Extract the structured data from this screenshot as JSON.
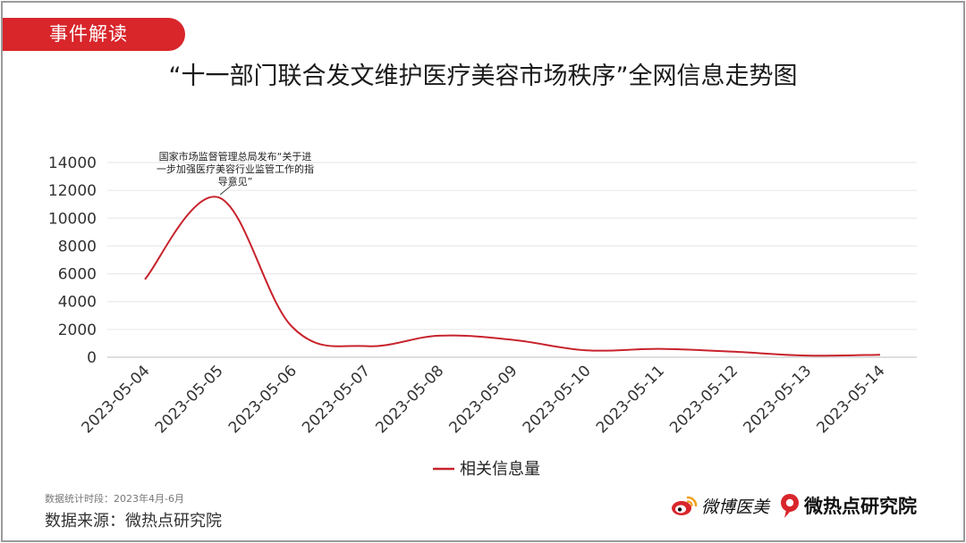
{
  "header": {
    "tag_label": "事件解读",
    "title": "“十一部门联合发文维护医疗美容市场秩序”全网信息走势图"
  },
  "chart_data": {
    "type": "line",
    "categories": [
      "2023-05-04",
      "2023-05-05",
      "2023-05-06",
      "2023-05-07",
      "2023-05-08",
      "2023-05-09",
      "2023-05-10",
      "2023-05-11",
      "2023-05-12",
      "2023-05-13",
      "2023-05-14"
    ],
    "series": [
      {
        "name": "相关信息量",
        "values": [
          5600,
          11500,
          2200,
          800,
          1550,
          1250,
          500,
          600,
          400,
          120,
          180
        ],
        "color": "#c8232c"
      }
    ],
    "ylim": [
      0,
      14000
    ],
    "yticks": [
      0,
      2000,
      4000,
      6000,
      8000,
      10000,
      12000,
      14000
    ],
    "grid": true,
    "legend_position": "bottom",
    "annotation": {
      "category": "2023-05-05",
      "lines": [
        "国家市场监督管理总局发布“关于进",
        "一步加强医疗美容行业监管工作的指",
        "导意见”"
      ]
    }
  },
  "footer": {
    "period_note": "数据统计时段：2023年4月-6月",
    "source": "数据来源：微热点研究院",
    "logo_weibo_text": "微博医美",
    "logo_weiredian_text": "微热点研究院",
    "brand_red": "#d8262b"
  }
}
